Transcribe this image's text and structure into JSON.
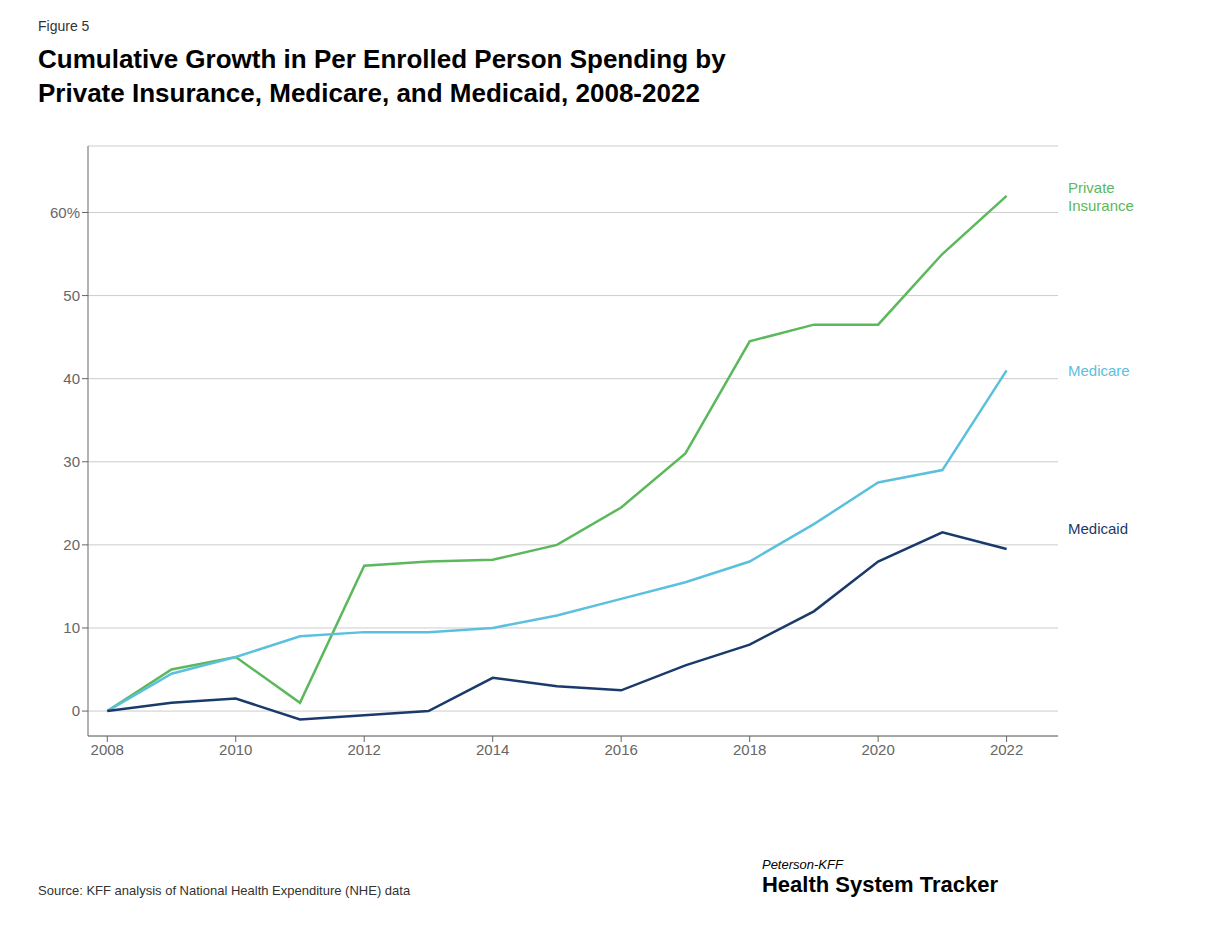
{
  "chart_data": {
    "type": "line",
    "title": "Cumulative Growth in Per Enrolled Person Spending by\nPrivate Insurance, Medicare, and Medicaid, 2008-2022",
    "annotations": [
      "Figure 5",
      "Source: KFF analysis of National Health Expenditure (NHE) data",
      "Peterson-KFF",
      "Health System Tracker"
    ],
    "x": [
      2008,
      2009,
      2010,
      2011,
      2012,
      2013,
      2014,
      2015,
      2016,
      2017,
      2018,
      2019,
      2020,
      2021,
      2022
    ],
    "series": [
      {
        "name": "Private\nInsurance",
        "color": "#5cb85c",
        "values": [
          0,
          5.0,
          6.5,
          1.0,
          17.5,
          18.0,
          18.2,
          20.0,
          24.5,
          31.0,
          44.5,
          46.5,
          46.5,
          55.0,
          62.0
        ],
        "label_y": 62.0
      },
      {
        "name": "Medicare",
        "color": "#5bc0de",
        "values": [
          0,
          4.5,
          6.5,
          9.0,
          9.5,
          9.5,
          10.0,
          11.5,
          13.5,
          15.5,
          18.0,
          22.5,
          27.5,
          29.0,
          41.0
        ],
        "label_y": 41.0
      },
      {
        "name": "Medicaid",
        "color": "#1a3a6b",
        "values": [
          0,
          1.0,
          1.5,
          -1.0,
          -0.5,
          0.0,
          4.0,
          3.0,
          2.5,
          5.5,
          8.0,
          12.0,
          18.0,
          21.5,
          19.5
        ],
        "label_y": 22.0
      }
    ],
    "xlim": [
      2007.7,
      2022.8
    ],
    "xticks": [
      2008,
      2010,
      2012,
      2014,
      2016,
      2018,
      2020,
      2022
    ],
    "ylim": [
      -3,
      68
    ],
    "yticks": [
      0,
      10,
      20,
      30,
      40,
      50,
      {
        "value": 60,
        "label": "60%"
      }
    ],
    "grid": "y"
  }
}
